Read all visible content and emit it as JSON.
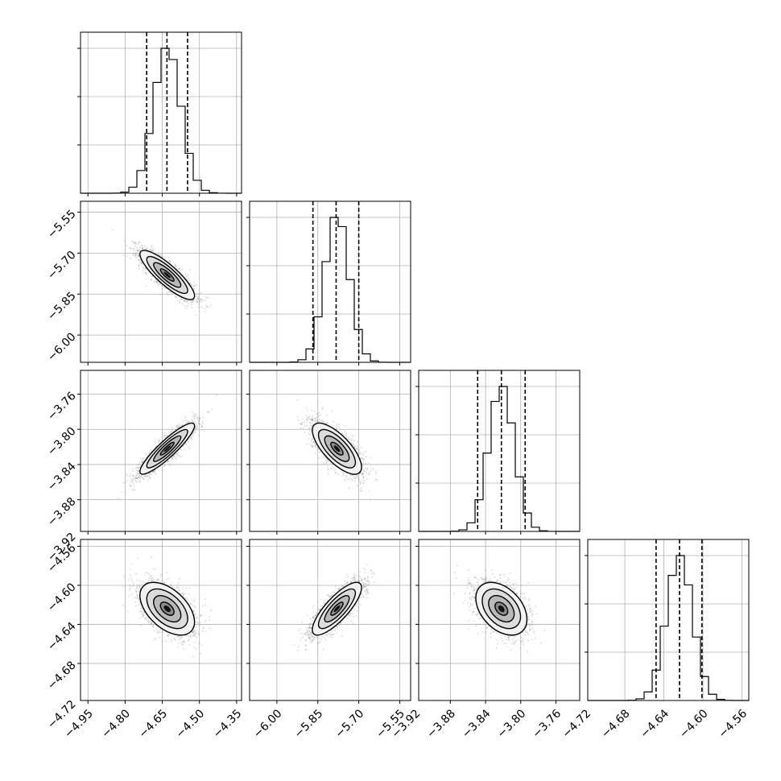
{
  "chart_data": {
    "type": "corner",
    "variables": [
      {
        "range": [
          -4.98,
          -4.33
        ],
        "ticks": [
          -4.95,
          -4.8,
          -4.65,
          -4.5,
          -4.35
        ],
        "tick_labels": [
          "−4.95",
          "−4.80",
          "−4.65",
          "−4.50",
          "−4.35"
        ],
        "mean": -4.63,
        "std": 0.055,
        "quantiles": [
          -4.713,
          -4.631,
          -4.548
        ]
      },
      {
        "range": [
          -6.1,
          -5.51
        ],
        "ticks": [
          -6.0,
          -5.85,
          -5.7,
          -5.55
        ],
        "tick_labels": [
          "−6.00",
          "−5.85",
          "−5.70",
          "−5.55"
        ],
        "mean": -5.78,
        "std": 0.045,
        "quantiles": [
          -5.868,
          -5.783,
          -5.7
        ]
      },
      {
        "range": [
          -3.916,
          -3.733
        ],
        "ticks": [
          -3.92,
          -3.88,
          -3.84,
          -3.8,
          -3.76
        ],
        "tick_labels": [
          "−3.92",
          "−3.88",
          "−3.84",
          "−3.80",
          "−3.76"
        ],
        "mean": -3.822,
        "std": 0.0145,
        "quantiles": [
          -3.849,
          -3.822,
          -3.795
        ]
      },
      {
        "range": [
          -4.718,
          -4.553
        ],
        "ticks": [
          -4.72,
          -4.68,
          -4.64,
          -4.6,
          -4.56
        ],
        "tick_labels": [
          "−4.72",
          "−4.68",
          "−4.64",
          "−4.60",
          "−4.56"
        ],
        "mean": -4.624,
        "std": 0.0135,
        "quantiles": [
          -4.648,
          -4.624,
          -4.601
        ]
      }
    ],
    "correlations": {
      "1-0": -0.85,
      "2-0": 0.9,
      "2-1": -0.72,
      "3-0": -0.5,
      "3-1": 0.8,
      "3-2": -0.4
    },
    "histogram_bins": 20,
    "contour_levels_sigma": [
      0.5,
      1.0,
      1.5,
      2.0
    ],
    "grid": true,
    "colors": {
      "hist": "#000000",
      "points": "#8c8c8c",
      "density": "#000000",
      "grid": "#b0b0b0"
    }
  }
}
